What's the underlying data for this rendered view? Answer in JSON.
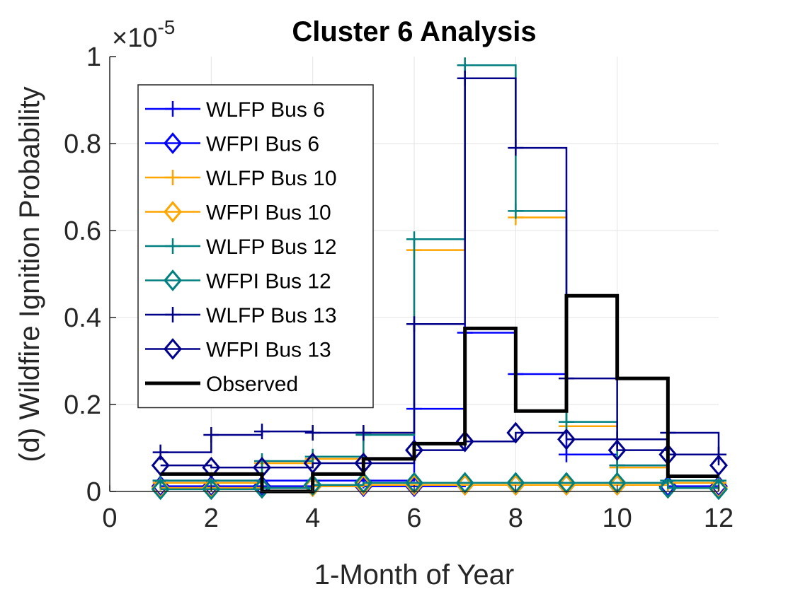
{
  "chart_data": {
    "type": "line",
    "style": "stairs",
    "title": "Cluster 6 Analysis",
    "xlabel": "1-Month of Year",
    "ylabel": "(d) Wildfire Ignition Probability",
    "y_exponent": {
      "base": "×10",
      "power": "-5"
    },
    "xlim": [
      0,
      12
    ],
    "ylim": [
      0,
      1
    ],
    "x_ticks": [
      0,
      2,
      4,
      6,
      8,
      10,
      12
    ],
    "x_tick_labels": [
      "0",
      "2",
      "4",
      "6",
      "8",
      "10",
      "12"
    ],
    "y_ticks": [
      0,
      0.2,
      0.4,
      0.6,
      0.8,
      1
    ],
    "y_tick_labels": [
      "0",
      "0.2",
      "0.4",
      "0.6",
      "0.8",
      "1"
    ],
    "grid": true,
    "legend_position": "upper-left",
    "x": [
      1,
      2,
      3,
      4,
      5,
      6,
      7,
      8,
      9,
      10,
      11,
      12
    ],
    "series": [
      {
        "name": "WLFP Bus 6",
        "color": "#0000ff",
        "marker": "plus",
        "values": [
          0.025,
          0.025,
          0.025,
          0.025,
          0.025,
          0.19,
          0.365,
          0.27,
          0.085,
          0.06,
          0.02,
          0.02
        ]
      },
      {
        "name": "WFPI Bus 6",
        "color": "#0000ff",
        "marker": "diamond",
        "values": [
          0.012,
          0.012,
          0.012,
          0.012,
          0.012,
          0.012,
          0.015,
          0.015,
          0.015,
          0.015,
          0.012,
          0.012
        ]
      },
      {
        "name": "WLFP Bus 10",
        "color": "#ffa500",
        "marker": "plus",
        "values": [
          0.02,
          0.02,
          0.065,
          0.075,
          0.135,
          0.555,
          0.98,
          0.63,
          0.15,
          0.055,
          0.02,
          0.02
        ]
      },
      {
        "name": "WFPI Bus 10",
        "color": "#ffa500",
        "marker": "diamond",
        "values": [
          0.008,
          0.008,
          0.008,
          0.012,
          0.015,
          0.015,
          0.015,
          0.015,
          0.015,
          0.015,
          0.008,
          0.008
        ]
      },
      {
        "name": "WLFP Bus 12",
        "color": "#008080",
        "marker": "plus",
        "values": [
          0.025,
          0.025,
          0.07,
          0.08,
          0.13,
          0.58,
          0.98,
          0.645,
          0.16,
          0.06,
          0.025,
          0.025
        ]
      },
      {
        "name": "WFPI Bus 12",
        "color": "#008080",
        "marker": "diamond",
        "values": [
          0.005,
          0.005,
          0.008,
          0.015,
          0.02,
          0.02,
          0.02,
          0.02,
          0.02,
          0.02,
          0.008,
          0.005
        ]
      },
      {
        "name": "WLFP Bus 13",
        "color": "#00008b",
        "marker": "plus",
        "values": [
          0.09,
          0.13,
          0.138,
          0.135,
          0.135,
          0.385,
          0.95,
          0.79,
          0.26,
          0.12,
          0.135,
          0.085
        ]
      },
      {
        "name": "WFPI Bus 13",
        "color": "#00008b",
        "marker": "diamond",
        "values": [
          0.06,
          0.055,
          0.055,
          0.065,
          0.065,
          0.095,
          0.115,
          0.135,
          0.12,
          0.095,
          0.085,
          0.06
        ]
      },
      {
        "name": "Observed",
        "color": "#000000",
        "marker": "none",
        "values": [
          0.04,
          0.04,
          0.0,
          0.04,
          0.075,
          0.11,
          0.375,
          0.185,
          0.45,
          0.26,
          0.035,
          0.035
        ]
      }
    ]
  }
}
